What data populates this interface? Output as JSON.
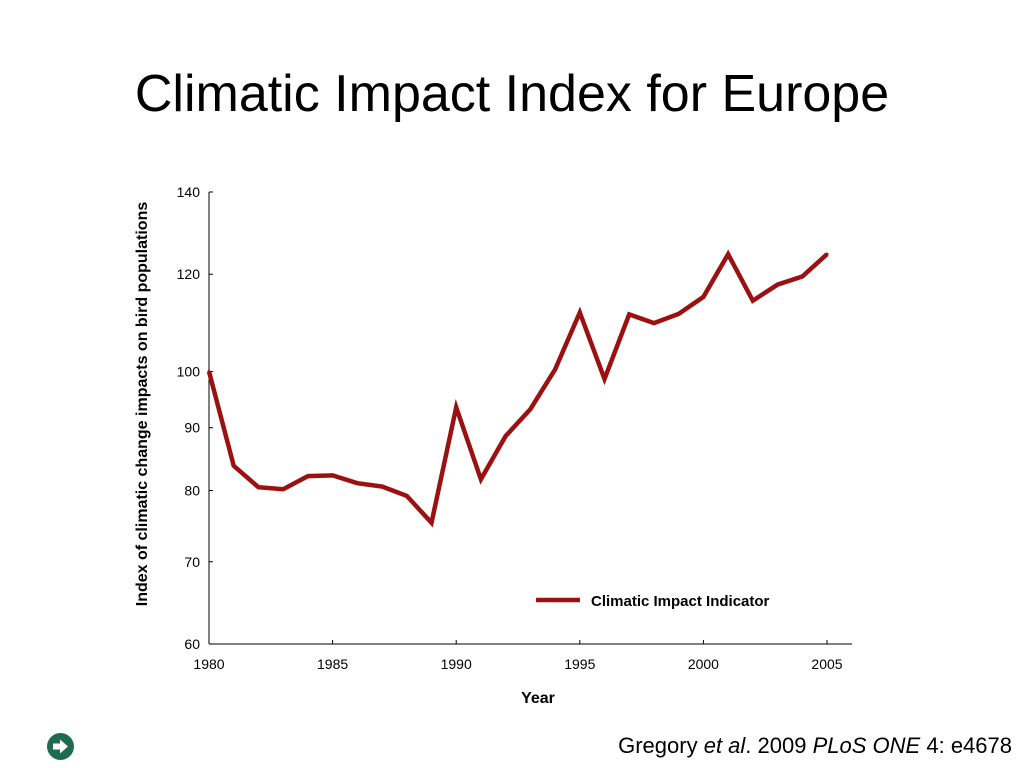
{
  "slide": {
    "title": "Climatic Impact Index for Europe"
  },
  "citation": {
    "author": "Gregory",
    "etal": "et al",
    "dot": ".",
    "year": "2009",
    "journal": "PLoS ONE",
    "ref": "4: e4678"
  },
  "nav_icon": "arrow-right-circle-icon",
  "colors": {
    "series": "#9b1111",
    "nav_icon": "#1f6b52"
  },
  "chart_data": {
    "type": "line",
    "xlabel": "Year",
    "ylabel": "Index of climatic change impacts on bird populations",
    "xlim": [
      1980,
      2006
    ],
    "ylim": [
      60,
      140
    ],
    "y_scale": "log",
    "x_ticks": [
      "1980",
      "1985",
      "1990",
      "1995",
      "2000",
      "2005"
    ],
    "y_ticks": [
      "60",
      "70",
      "80",
      "90",
      "100",
      "120",
      "140"
    ],
    "legend_position": "bottom-right",
    "series": [
      {
        "name": "Climatic Impact Indicator",
        "x": [
          1980,
          1981,
          1982,
          1983,
          1984,
          1985,
          1986,
          1987,
          1988,
          1989,
          1990,
          1991,
          1992,
          1993,
          1994,
          1995,
          1996,
          1997,
          1998,
          1999,
          2000,
          2001,
          2002,
          2003,
          2004,
          2005
        ],
        "values": [
          100,
          83.8,
          80.5,
          80.2,
          82.2,
          82.3,
          81.1,
          80.6,
          79.2,
          75.3,
          93.5,
          81.7,
          88.6,
          93.2,
          100.4,
          111.7,
          98.6,
          111.3,
          109.5,
          111.4,
          115.0,
          124.6,
          114.2,
          117.7,
          119.5,
          124.6
        ]
      }
    ]
  }
}
